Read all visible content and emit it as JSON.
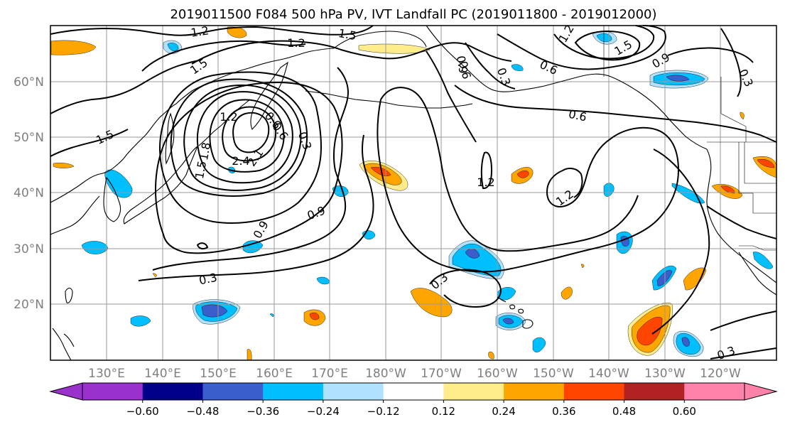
{
  "title": "2019011500 F084 500 hPa PV, IVT Landfall PC (2019011800 - 2019012000)",
  "lat_labels": [
    "60°N",
    "50°N",
    "40°N",
    "30°N",
    "20°N"
  ],
  "lon_labels": [
    "130°E",
    "140°E",
    "150°E",
    "160°E",
    "170°E",
    "180°W",
    "170°W",
    "160°W",
    "150°W",
    "140°W",
    "130°W",
    "120°W"
  ],
  "contour_levels": [
    "1.2",
    "1.5",
    "1.2",
    "1.5",
    "0.6",
    "0.3",
    "0.6",
    "0.9",
    "0.3",
    "1.5",
    "0.9",
    "1.2",
    "1.5",
    "1.2",
    "2.4",
    "2.1",
    "1.8",
    "1.5",
    "0.6",
    "0.3",
    "0.6",
    "1.2",
    "0.9",
    "0.9",
    "1.2",
    "0.3",
    "0.3",
    "0.6",
    "0.3"
  ],
  "colorbar": {
    "ticks": [
      "−0.60",
      "−0.48",
      "−0.36",
      "−0.24",
      "−0.12",
      "0.12",
      "0.24",
      "0.36",
      "0.48",
      "0.60"
    ],
    "colors": [
      "#9932CC",
      "#00008B",
      "#3A5FCD",
      "#00BFFF",
      "#B0E2FF",
      "#FFFFFF",
      "#FFEC8B",
      "#FFA500",
      "#FF4500",
      "#B22222",
      "#FF82AB"
    ],
    "extend": "both"
  },
  "fill_colors": {
    "pos1": "#FFEC8B",
    "pos2": "#FFA500",
    "pos3": "#FF4500",
    "neg1": "#B0E2FF",
    "neg2": "#00BFFF",
    "neg3": "#3A5FCD"
  }
}
